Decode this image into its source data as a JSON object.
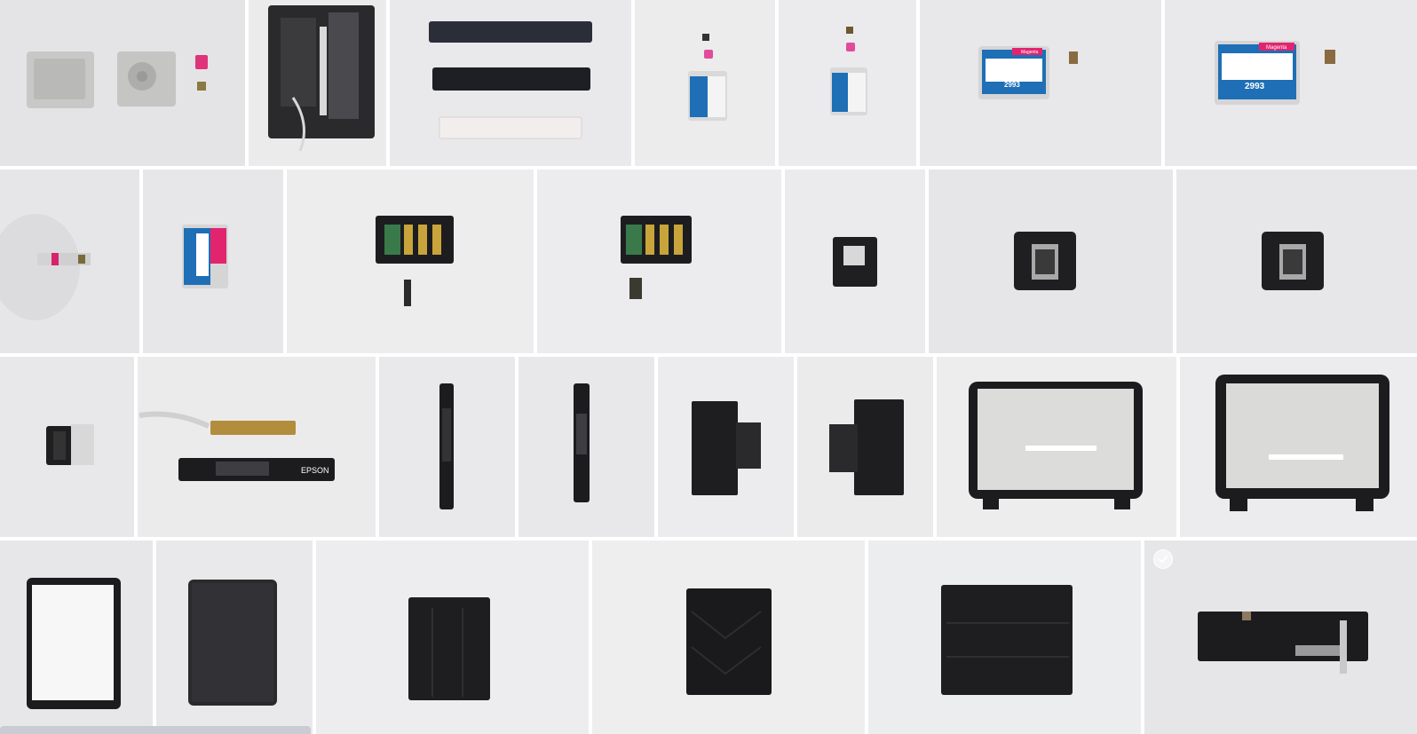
{
  "gallery": {
    "rows": [
      {
        "tiles": [
          {
            "name": "photo-cartridge-covers-and-chips",
            "bg": "#e4e4e6",
            "w": 276
          },
          {
            "name": "photo-printer-carriage-assembly",
            "bg": "#ebebec",
            "w": 155
          },
          {
            "name": "photo-black-rails-and-sponge",
            "bg": "#e9e9eb",
            "w": 272
          },
          {
            "name": "photo-cartridge-with-chips-small",
            "bg": "#ececed",
            "w": 158
          },
          {
            "name": "photo-cartridge-with-chips-small-2",
            "bg": "#ebebed",
            "w": 155
          },
          {
            "name": "photo-magenta-cartridge-front",
            "bg": "#e8e8ea",
            "w": 272
          },
          {
            "name": "photo-magenta-cartridge-front-2",
            "bg": "#e9e9eb",
            "w": 292
          }
        ]
      },
      {
        "tiles": [
          {
            "name": "photo-cartridge-side-view",
            "bg": "#e6e6e8",
            "w": 157
          },
          {
            "name": "photo-cartridge-standing",
            "bg": "#e7e7e9",
            "w": 158
          },
          {
            "name": "photo-cartridge-holder-with-sensor",
            "bg": "#ededee",
            "w": 278
          },
          {
            "name": "photo-cartridge-holder-top",
            "bg": "#ececee",
            "w": 275
          },
          {
            "name": "photo-printhead-small",
            "bg": "#ebebed",
            "w": 158
          },
          {
            "name": "photo-printhead-top-view",
            "bg": "#e6e6e8",
            "w": 275
          },
          {
            "name": "photo-printhead-top-view-2",
            "bg": "#e7e7e9",
            "w": 271
          }
        ]
      },
      {
        "tiles": [
          {
            "name": "photo-printhead-side-view",
            "bg": "#e8e8ea",
            "w": 151
          },
          {
            "name": "photo-control-panel-board",
            "bg": "#ebebec",
            "w": 268
          },
          {
            "name": "photo-control-panel-vertical",
            "bg": "#e9e9eb",
            "w": 153
          },
          {
            "name": "photo-control-panel-vertical-2",
            "bg": "#e8e8ea",
            "w": 153
          },
          {
            "name": "photo-paper-tray-extension",
            "bg": "#ececee",
            "w": 153
          },
          {
            "name": "photo-paper-tray-extension-2",
            "bg": "#ebebec",
            "w": 153
          },
          {
            "name": "photo-scanner-glass-frame",
            "bg": "#ededee",
            "w": 270
          },
          {
            "name": "photo-scanner-glass-frame-2",
            "bg": "#ececee",
            "w": 280
          }
        ]
      },
      {
        "tiles": [
          {
            "name": "photo-scanner-lid-inner",
            "bg": "#e7e7e9",
            "w": 172
          },
          {
            "name": "photo-scanner-lid-outer",
            "bg": "#e9e9eb",
            "w": 176
          },
          {
            "name": "photo-paper-output-tray",
            "bg": "#ededef",
            "w": 307
          },
          {
            "name": "photo-paper-support-panel",
            "bg": "#eeeeef",
            "w": 307
          },
          {
            "name": "photo-rear-paper-guide",
            "bg": "#ecedee",
            "w": 307
          },
          {
            "name": "photo-paper-feed-roller-assembly",
            "bg": "#e6e6e8",
            "w": 309,
            "selected": true
          }
        ]
      }
    ]
  },
  "labels": {
    "epson": "EPSON",
    "magenta": "Magenta",
    "cartridge_number": "2993"
  }
}
